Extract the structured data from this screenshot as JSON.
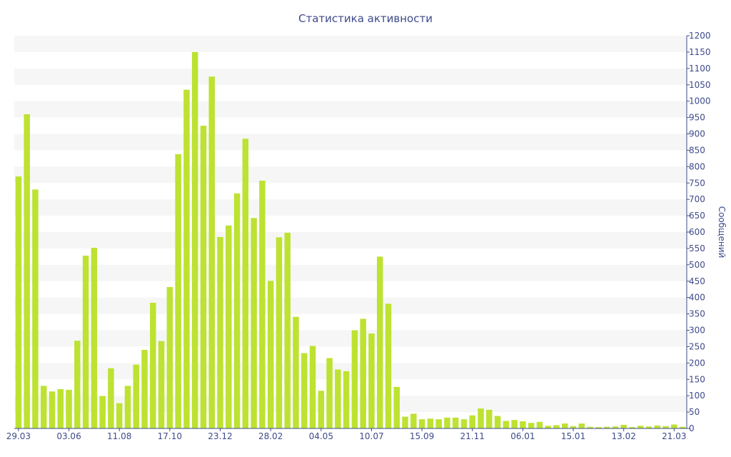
{
  "colors": {
    "bar": "#bde231",
    "axis": "#3e4a8a",
    "band": "#f6f6f6"
  },
  "chart_data": {
    "type": "bar",
    "title": "Статистика активности",
    "xlabel": "",
    "ylabel": "Сообщений",
    "y_axis_position": "right",
    "grid": "alternating horizontal bands",
    "legend": "none",
    "ylim": [
      0,
      1200
    ],
    "yticks": [
      0,
      50,
      100,
      150,
      200,
      250,
      300,
      350,
      400,
      450,
      500,
      550,
      600,
      650,
      700,
      750,
      800,
      850,
      900,
      950,
      1000,
      1050,
      1100,
      1150,
      1200
    ],
    "xtick_labels": [
      {
        "index": 0,
        "label": "29.03"
      },
      {
        "index": 6,
        "label": "03.06"
      },
      {
        "index": 12,
        "label": "11.08"
      },
      {
        "index": 18,
        "label": "17.10"
      },
      {
        "index": 24,
        "label": "23.12"
      },
      {
        "index": 30,
        "label": "28.02"
      },
      {
        "index": 36,
        "label": "04.05"
      },
      {
        "index": 42,
        "label": "10.07"
      },
      {
        "index": 48,
        "label": "15.09"
      },
      {
        "index": 54,
        "label": "21.11"
      },
      {
        "index": 60,
        "label": "06.01"
      },
      {
        "index": 66,
        "label": "15.01"
      },
      {
        "index": 72,
        "label": "13.02"
      },
      {
        "index": 78,
        "label": "21.03"
      }
    ],
    "values": [
      770,
      960,
      730,
      130,
      113,
      120,
      118,
      268,
      528,
      552,
      99,
      184,
      77,
      130,
      195,
      240,
      384,
      267,
      432,
      838,
      1035,
      1150,
      925,
      1075,
      585,
      620,
      718,
      885,
      643,
      757,
      451,
      584,
      598,
      341,
      230,
      252,
      115,
      215,
      180,
      175,
      300,
      335,
      290,
      525,
      381,
      127,
      36,
      45,
      28,
      30,
      28,
      33,
      33,
      28,
      40,
      61,
      57,
      38,
      23,
      26,
      22,
      17,
      20,
      8,
      10,
      15,
      7,
      15,
      5,
      4,
      5,
      6,
      11,
      4,
      8,
      6,
      9,
      7,
      12,
      5
    ]
  }
}
